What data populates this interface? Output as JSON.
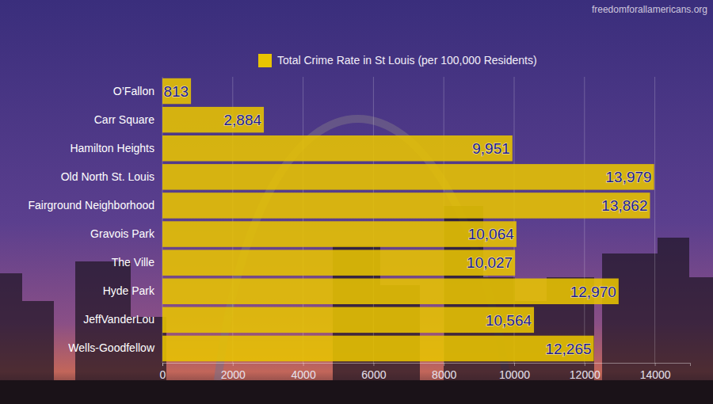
{
  "chart_data": {
    "type": "bar",
    "orientation": "horizontal",
    "annotations": [
      "freedomforallamericans.org"
    ],
    "categories": [
      "O’Fallon",
      "Carr Square",
      "Hamilton Heights",
      "Old North St. Louis",
      "Fairground Neighborhood",
      "Gravois Park",
      "The Ville",
      "Hyde Park",
      "JeffVanderLou",
      "Wells-Goodfellow"
    ],
    "series": [
      {
        "name": "Total Crime Rate in St Louis (per 100,000 Residents)",
        "color": "#e8c400",
        "values": [
          813,
          2884,
          9951,
          13979,
          13862,
          10064,
          10027,
          12970,
          10564,
          12265
        ],
        "value_labels": [
          "813",
          "2,884",
          "9,951",
          "13,979",
          "13,862",
          "10,064",
          "10,027",
          "12,970",
          "10,564",
          "12,265"
        ]
      }
    ],
    "xlim": [
      0,
      15000
    ],
    "xticks": [
      0,
      2000,
      4000,
      6000,
      8000,
      10000,
      12000,
      14000
    ],
    "grid": true,
    "legend": "top",
    "data_labels": true
  }
}
